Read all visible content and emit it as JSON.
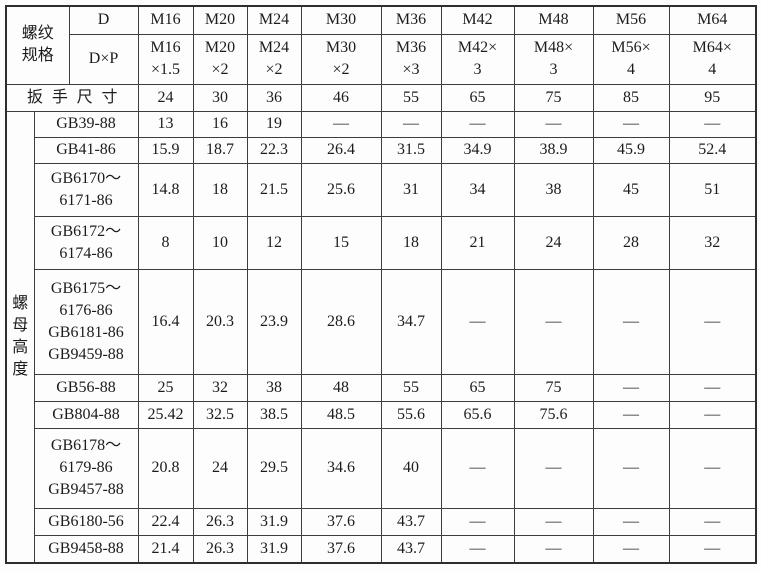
{
  "table": {
    "header": {
      "thread_spec_label": "螺纹\n规格",
      "d_label": "D",
      "dxp_label": "D×P",
      "wrench_label": "扳手尺寸",
      "d_values": [
        "M16",
        "M20",
        "M24",
        "M30",
        "M36",
        "M42",
        "M48",
        "M56",
        "M64"
      ],
      "dxp_values": [
        "M16\n×1.5",
        "M20\n×2",
        "M24\n×2",
        "M30\n×2",
        "M36\n×3",
        "M42×\n3",
        "M48×\n3",
        "M56×\n4",
        "M64×\n4"
      ],
      "wrench_values": [
        "24",
        "30",
        "36",
        "46",
        "55",
        "65",
        "75",
        "85",
        "95"
      ]
    },
    "nut_height_label": "螺母高度",
    "rows": [
      {
        "standard": "GB39-88",
        "values": [
          "13",
          "16",
          "19",
          "—",
          "—",
          "—",
          "—",
          "—",
          "—"
        ]
      },
      {
        "standard": "GB41-86",
        "values": [
          "15.9",
          "18.7",
          "22.3",
          "26.4",
          "31.5",
          "34.9",
          "38.9",
          "45.9",
          "52.4"
        ]
      },
      {
        "standard": "GB6170～\n6171-86",
        "values": [
          "14.8",
          "18",
          "21.5",
          "25.6",
          "31",
          "34",
          "38",
          "45",
          "51"
        ]
      },
      {
        "standard": "GB6172～\n6174-86",
        "values": [
          "8",
          "10",
          "12",
          "15",
          "18",
          "21",
          "24",
          "28",
          "32"
        ]
      },
      {
        "standard": "GB6175～\n6176-86\nGB6181-86\nGB9459-88",
        "values": [
          "16.4",
          "20.3",
          "23.9",
          "28.6",
          "34.7",
          "—",
          "—",
          "—",
          "—"
        ]
      },
      {
        "standard": "GB56-88",
        "values": [
          "25",
          "32",
          "38",
          "48",
          "55",
          "65",
          "75",
          "—",
          "—"
        ]
      },
      {
        "standard": "GB804-88",
        "values": [
          "25.42",
          "32.5",
          "38.5",
          "48.5",
          "55.6",
          "65.6",
          "75.6",
          "—",
          "—"
        ]
      },
      {
        "standard": "GB6178～\n6179-86\nGB9457-88",
        "values": [
          "20.8",
          "24",
          "29.5",
          "34.6",
          "40",
          "—",
          "—",
          "—",
          "—"
        ]
      },
      {
        "standard": "GB6180-56",
        "values": [
          "22.4",
          "26.3",
          "31.9",
          "37.6",
          "43.7",
          "—",
          "—",
          "—",
          "—"
        ]
      },
      {
        "standard": "GB9458-88",
        "values": [
          "21.4",
          "26.3",
          "31.9",
          "37.6",
          "43.7",
          "—",
          "—",
          "—",
          "—"
        ]
      }
    ]
  }
}
